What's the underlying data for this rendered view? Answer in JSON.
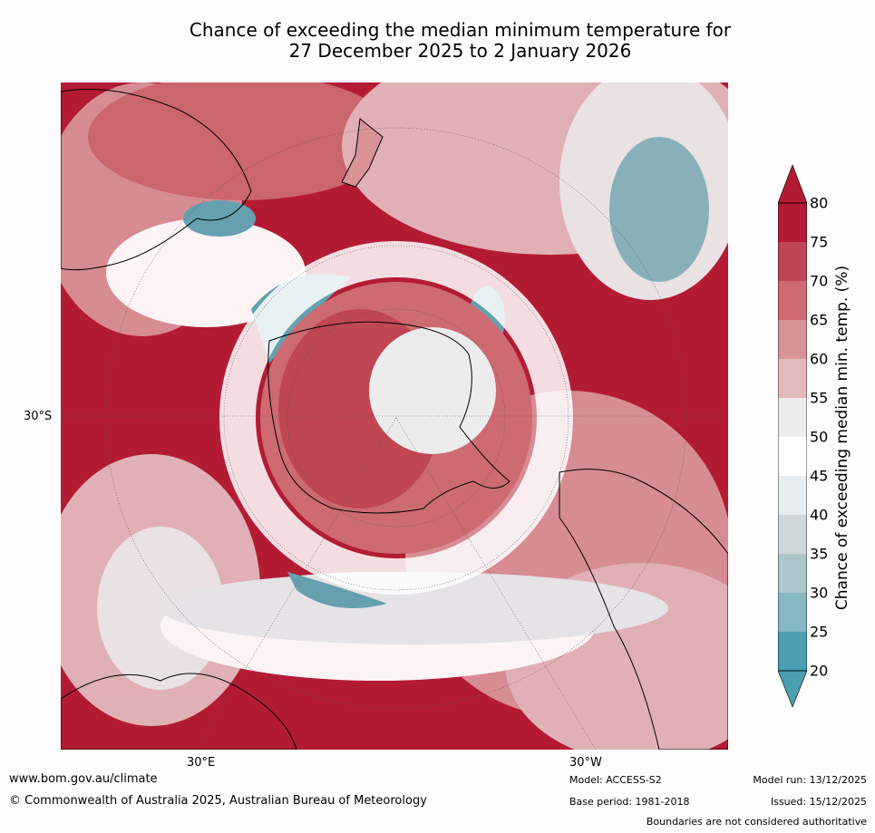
{
  "title": {
    "line1": "Chance of exceeding the median minimum temperature for",
    "line2": "27 December 2025 to 2 January 2026"
  },
  "map": {
    "description_region": "Southern hemisphere polar projection",
    "axis_labels": {
      "left_lat": "30°S",
      "bottom_left_lon": "30°E",
      "bottom_right_lon": "30°W"
    }
  },
  "colorbar": {
    "label": "Chance of exceeding median min. temp. (%)",
    "ticks": [
      "80",
      "75",
      "70",
      "65",
      "60",
      "55",
      "50",
      "45",
      "40",
      "35",
      "30",
      "25",
      "20"
    ],
    "colors": [
      "#b31b34",
      "#c04654",
      "#cd6a72",
      "#d99298",
      "#e3b9bc",
      "#ececec",
      "#ffffff",
      "#e8eef0",
      "#d0d8db",
      "#acc6cb",
      "#86b8c1",
      "#62a8b6",
      "#4a9fb0"
    ]
  },
  "footer": {
    "website": "www.bom.gov.au/climate",
    "copyright": "© Commonwealth of Australia 2025, Australian Bureau of Meteorology",
    "model": "Model: ACCESS-S2",
    "base_period": "Base period: 1981-2018",
    "model_run": "Model run: 13/12/2025",
    "issued": "Issued: 15/12/2025",
    "disclaimer": "Boundaries are not considered authoritative"
  },
  "colors": {
    "high": "#b31b34",
    "mid_high": "#cd6a72",
    "low": "#4a9fb0",
    "neutral": "#ffffff"
  }
}
